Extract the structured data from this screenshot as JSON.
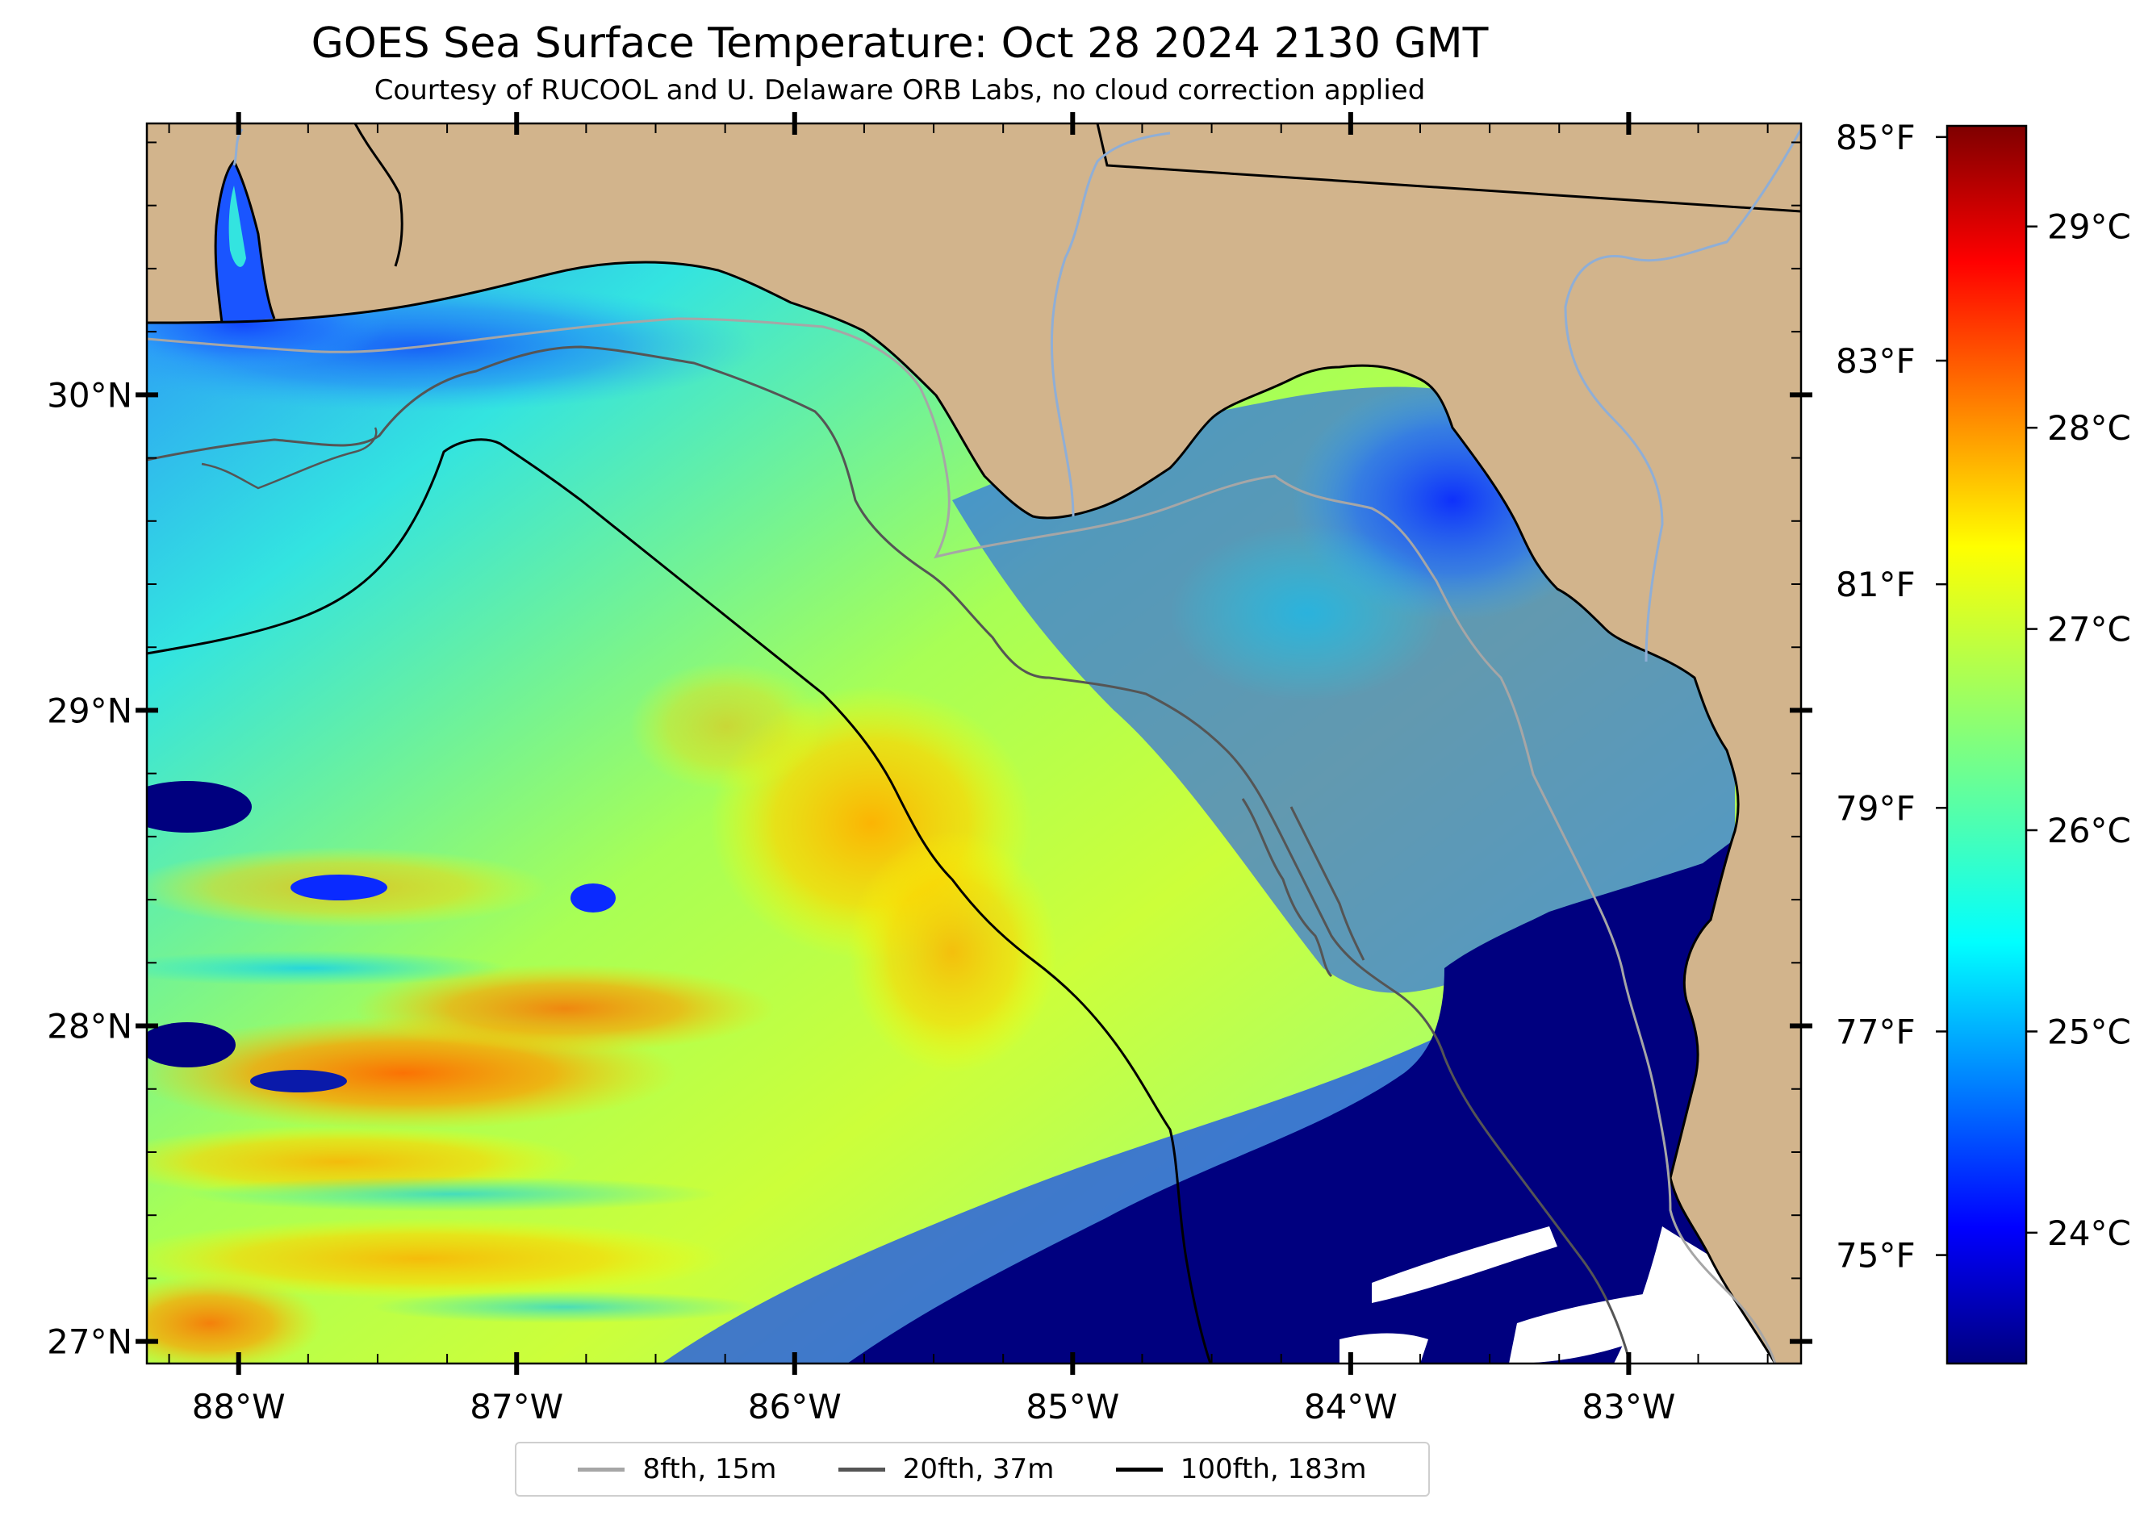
{
  "header": {
    "title": "GOES Sea Surface Temperature: Oct 28 2024 2130 GMT",
    "subtitle": "Courtesy of RUCOOL and U. Delaware ORB Labs, no cloud correction applied"
  },
  "map": {
    "lon_labels": [
      "88°W",
      "87°W",
      "86°W",
      "85°W",
      "84°W",
      "83°W"
    ],
    "lon_values": [
      -88,
      -87,
      -86,
      -85,
      -84,
      -83
    ],
    "lat_labels": [
      "30°N",
      "29°N",
      "28°N",
      "27°N"
    ],
    "lat_values": [
      30,
      29,
      28,
      27
    ],
    "extent": {
      "lon_min": -88.33,
      "lon_max": -82.38,
      "lat_min": 26.93,
      "lat_max": 30.86
    }
  },
  "colorbar": {
    "celsius_labels": [
      "29°C",
      "28°C",
      "27°C",
      "26°C",
      "25°C",
      "24°C"
    ],
    "celsius_values": [
      29,
      28,
      27,
      26,
      25,
      24
    ],
    "fahrenheit_labels": [
      "85°F",
      "83°F",
      "81°F",
      "79°F",
      "77°F",
      "75°F"
    ],
    "fahrenheit_values": [
      85,
      83,
      81,
      79,
      77,
      75
    ],
    "range_celsius": [
      23.35,
      29.5
    ],
    "colormap": "jet"
  },
  "legend": {
    "items": [
      {
        "label": "8fth, 15m",
        "color": "#a6a6a6"
      },
      {
        "label": "20fth, 37m",
        "color": "#555555"
      },
      {
        "label": "100fth, 183m",
        "color": "#000000"
      }
    ]
  },
  "colors": {
    "land": "#d2b48c",
    "cold_water": "#00007f",
    "coastline": "#000000",
    "rivers": "#8faed6",
    "no_data": "#ffffff"
  }
}
